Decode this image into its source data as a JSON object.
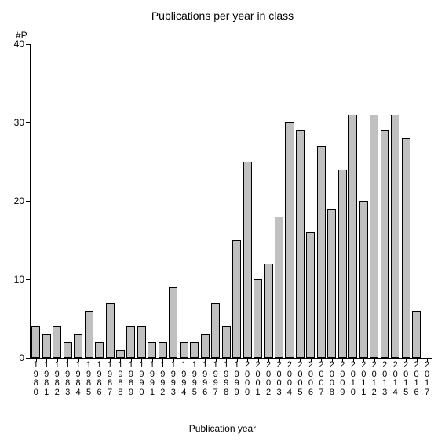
{
  "chart": {
    "type": "bar",
    "title": "Publications per year in class",
    "y_axis_label": "#P",
    "x_axis_title": "Publication year",
    "title_fontsize": 14,
    "label_fontsize": 12,
    "tick_fontsize": 12,
    "bar_color": "#c0c0c0",
    "bar_border_color": "#000000",
    "axis_color": "#000000",
    "background_color": "#ffffff",
    "ylim": [
      0,
      40
    ],
    "ytick_step": 10,
    "yticks": [
      0,
      10,
      20,
      30,
      40
    ],
    "bar_width": 0.82,
    "categories": [
      "1980",
      "1981",
      "1982",
      "1983",
      "1984",
      "1985",
      "1986",
      "1987",
      "1988",
      "1989",
      "1990",
      "1991",
      "1992",
      "1993",
      "1994",
      "1995",
      "1996",
      "1997",
      "1998",
      "1999",
      "2000",
      "2001",
      "2002",
      "2003",
      "2004",
      "2005",
      "2006",
      "2007",
      "2008",
      "2009",
      "2010",
      "2011",
      "2012",
      "2013",
      "2014",
      "2015",
      "2016",
      "2017"
    ],
    "values": [
      4,
      3,
      4,
      2,
      3,
      6,
      2,
      7,
      1,
      4,
      4,
      2,
      2,
      9,
      2,
      2,
      3,
      7,
      4,
      15,
      25,
      10,
      12,
      18,
      30,
      29,
      16,
      27,
      19,
      24,
      31,
      20,
      31,
      29,
      31,
      28,
      6,
      0
    ]
  }
}
